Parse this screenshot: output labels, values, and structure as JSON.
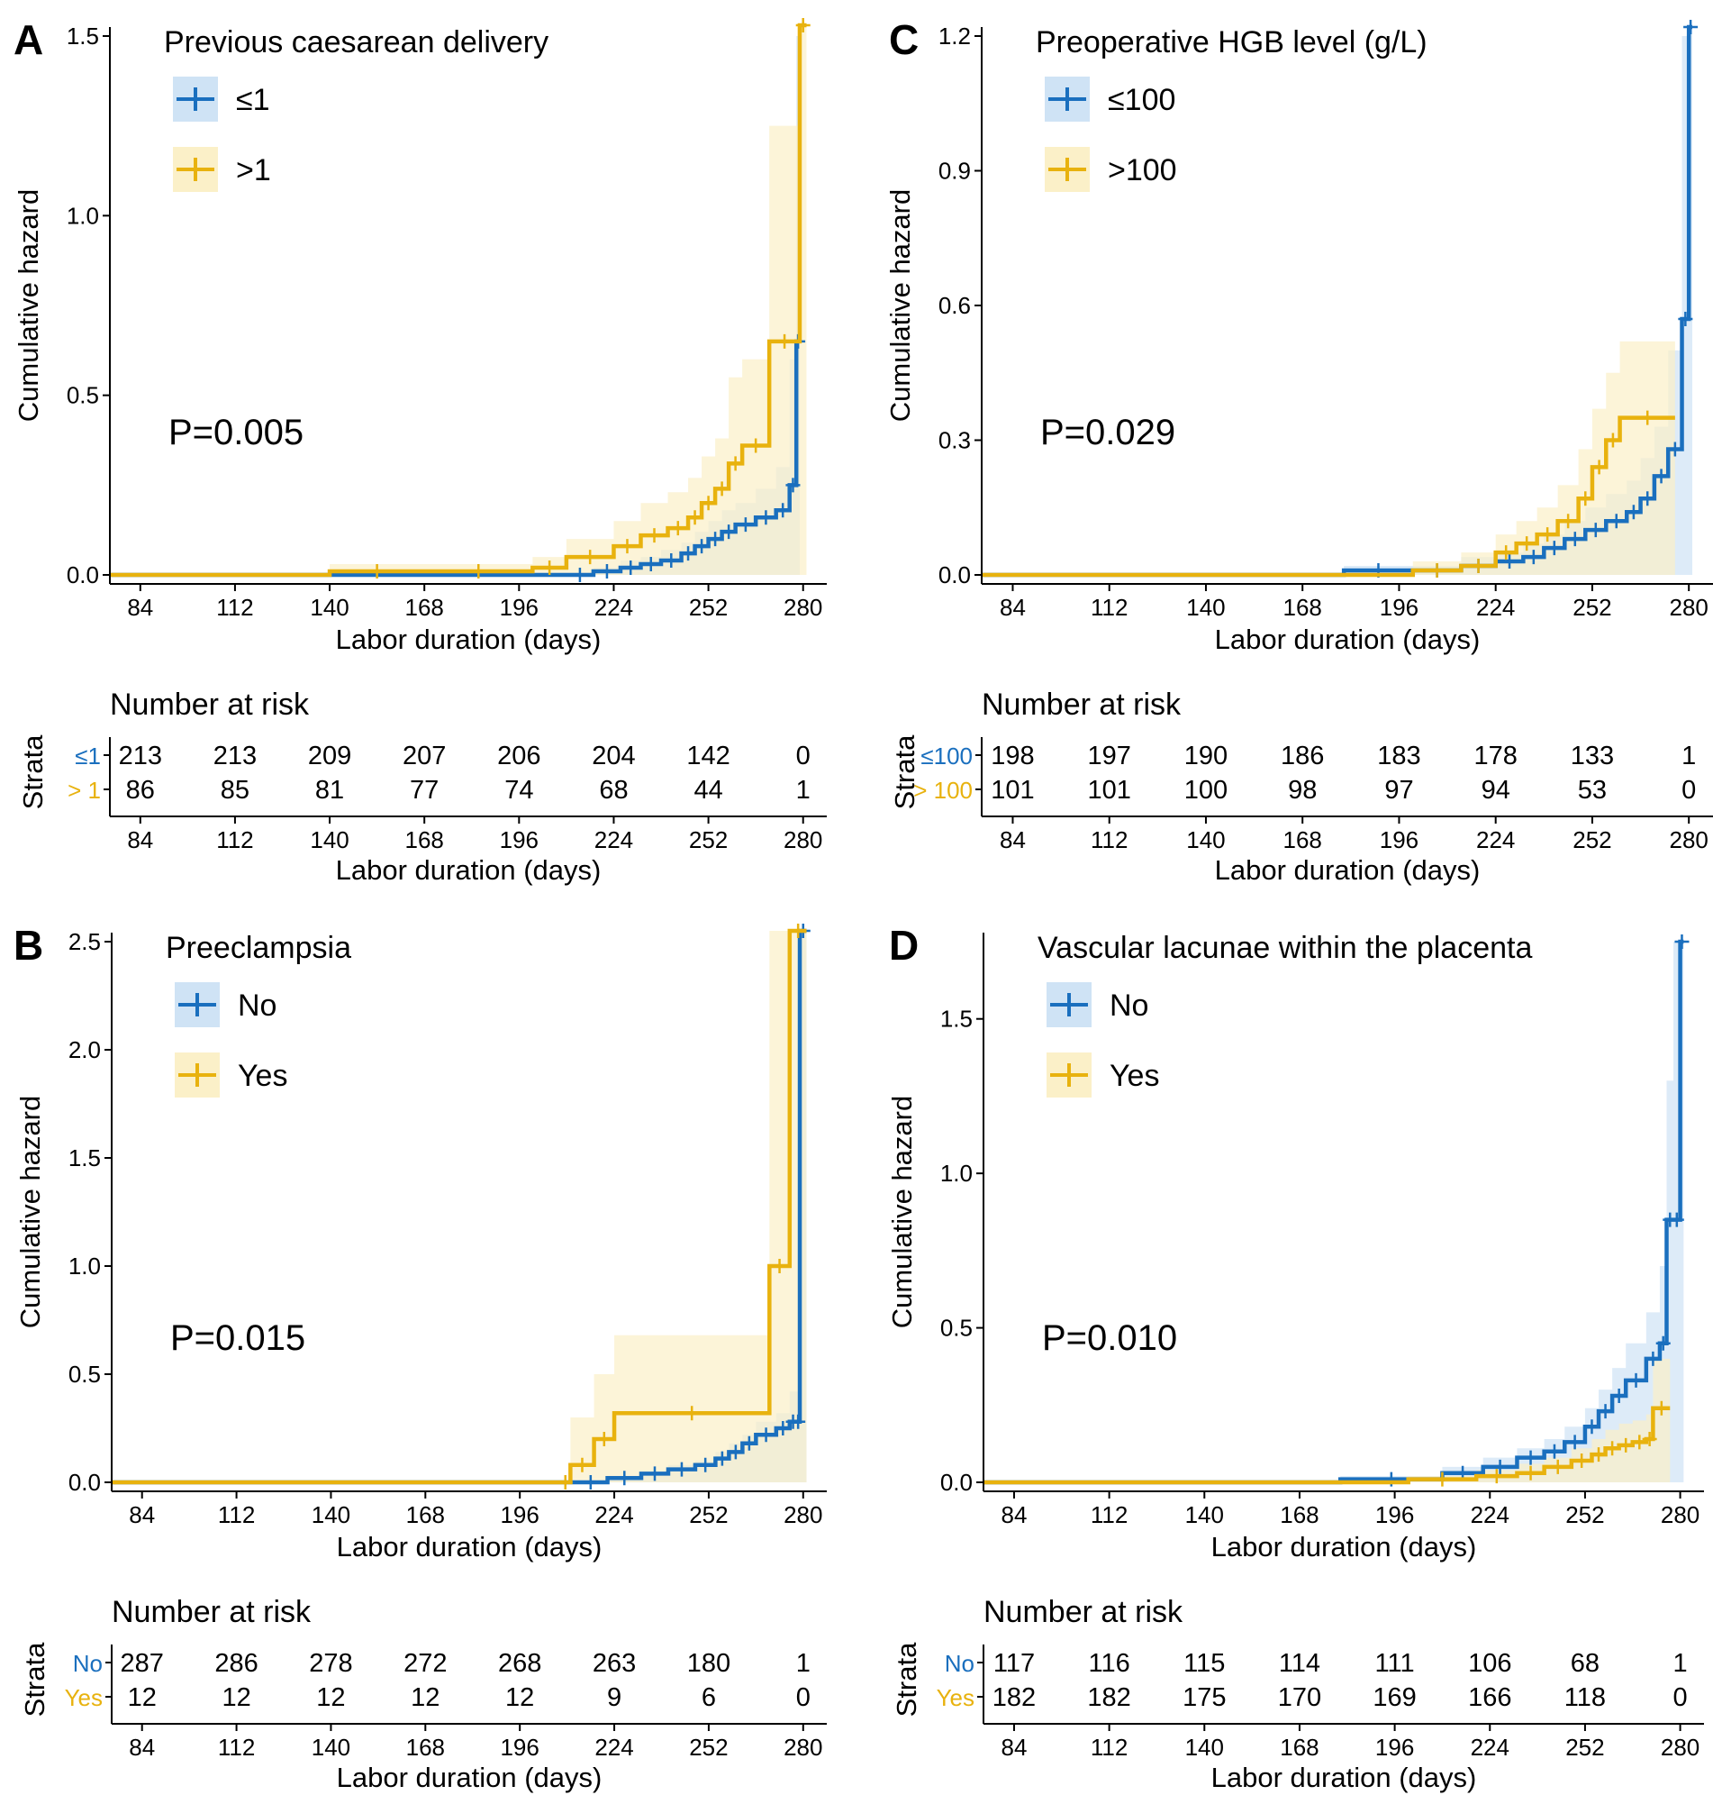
{
  "colors": {
    "group1": "#1a6fbe",
    "group2": "#e8b20e",
    "band1": "#cfe3f5",
    "band2": "#fbf0c8",
    "axis": "#000000"
  },
  "chart_data": [
    {
      "panel": "A",
      "type": "line",
      "title": "Previous caesarean delivery",
      "xlabel": "Labor duration (days)",
      "ylabel": "Cumulative hazard",
      "xlim": [
        75,
        287
      ],
      "ylim": [
        0,
        1.5
      ],
      "xticks": [
        "84",
        "112",
        "140",
        "168",
        "196",
        "224",
        "252",
        "280"
      ],
      "yticks": [
        "0.0",
        "0.5",
        "1.0",
        "1.5"
      ],
      "p_value": "P=0.005",
      "series": [
        {
          "name": "≤1",
          "x": [
            75,
            210,
            218,
            226,
            232,
            238,
            244,
            248,
            252,
            256,
            260,
            266,
            272,
            276,
            278,
            279
          ],
          "y": [
            0,
            0,
            0.01,
            0.02,
            0.03,
            0.04,
            0.06,
            0.08,
            0.1,
            0.12,
            0.14,
            0.16,
            0.18,
            0.25,
            0.65,
            0.65
          ],
          "band_upper": [
            0,
            0,
            0.02,
            0.04,
            0.05,
            0.07,
            0.09,
            0.12,
            0.15,
            0.18,
            0.2,
            0.24,
            0.3,
            0.6,
            1.5,
            1.5
          ]
        },
        {
          "name": ">1",
          "x": [
            75,
            140,
            168,
            200,
            210,
            224,
            232,
            240,
            246,
            250,
            254,
            258,
            262,
            270,
            279,
            281
          ],
          "y": [
            0,
            0.01,
            0.01,
            0.02,
            0.05,
            0.08,
            0.11,
            0.13,
            0.16,
            0.2,
            0.24,
            0.31,
            0.36,
            0.65,
            1.55,
            1.55
          ],
          "band_upper": [
            0,
            0.03,
            0.03,
            0.05,
            0.1,
            0.15,
            0.2,
            0.23,
            0.27,
            0.33,
            0.38,
            0.55,
            0.6,
            1.25,
            1.55,
            1.55
          ]
        }
      ],
      "risk_table": {
        "title": "Number at risk",
        "strata_label": "Strata",
        "rows": [
          {
            "label": "≤1",
            "values": [
              "213",
              "213",
              "209",
              "207",
              "206",
              "204",
              "142",
              "0"
            ]
          },
          {
            "label": "> 1",
            "values": [
              "86",
              "85",
              "81",
              "77",
              "74",
              "68",
              "44",
              "1"
            ]
          }
        ]
      }
    },
    {
      "panel": "C",
      "type": "line",
      "title": "Preoperative HGB level (g/L)",
      "xlabel": "Labor duration (days)",
      "ylabel": "Cumulative hazard",
      "xlim": [
        75,
        287
      ],
      "ylim": [
        0,
        1.2
      ],
      "xticks": [
        "84",
        "112",
        "140",
        "168",
        "196",
        "224",
        "252",
        "280"
      ],
      "yticks": [
        "0.0",
        "0.3",
        "0.6",
        "0.9",
        "1.2"
      ],
      "p_value": "P=0.029",
      "series": [
        {
          "name": "≤100",
          "x": [
            75,
            180,
            200,
            214,
            224,
            232,
            238,
            244,
            250,
            256,
            262,
            266,
            270,
            274,
            278,
            280,
            281
          ],
          "y": [
            0,
            0.01,
            0.01,
            0.02,
            0.03,
            0.04,
            0.06,
            0.08,
            0.1,
            0.12,
            0.14,
            0.17,
            0.22,
            0.28,
            0.57,
            1.22,
            1.22
          ],
          "band_upper": [
            0,
            0.02,
            0.02,
            0.04,
            0.05,
            0.07,
            0.09,
            0.12,
            0.15,
            0.18,
            0.21,
            0.26,
            0.33,
            0.5,
            1.2,
            1.22,
            1.22
          ]
        },
        {
          "name": ">100",
          "x": [
            75,
            200,
            214,
            224,
            230,
            236,
            242,
            248,
            252,
            256,
            260,
            276
          ],
          "y": [
            0,
            0.01,
            0.02,
            0.05,
            0.07,
            0.09,
            0.12,
            0.17,
            0.24,
            0.3,
            0.35,
            0.35
          ],
          "band_upper": [
            0,
            0.03,
            0.05,
            0.09,
            0.12,
            0.15,
            0.2,
            0.28,
            0.37,
            0.45,
            0.52,
            0.52
          ]
        }
      ],
      "risk_table": {
        "title": "Number at risk",
        "strata_label": "Strata",
        "rows": [
          {
            "label": "≤100",
            "values": [
              "198",
              "197",
              "190",
              "186",
              "183",
              "178",
              "133",
              "1"
            ]
          },
          {
            "label": "> 100",
            "values": [
              "101",
              "101",
              "100",
              "98",
              "97",
              "94",
              "53",
              "0"
            ]
          }
        ]
      }
    },
    {
      "panel": "B",
      "type": "line",
      "title": "Preeclampsia",
      "xlabel": "Labor duration (days)",
      "ylabel": "Cumulative hazard",
      "xlim": [
        75,
        287
      ],
      "ylim": [
        0,
        2.5
      ],
      "xticks": [
        "84",
        "112",
        "140",
        "168",
        "196",
        "224",
        "252",
        "280"
      ],
      "yticks": [
        "0.0",
        "0.5",
        "1.0",
        "1.5",
        "2.0",
        "2.5"
      ],
      "p_value": "P=0.015",
      "series": [
        {
          "name": "No",
          "x": [
            75,
            212,
            222,
            232,
            240,
            248,
            254,
            258,
            262,
            266,
            272,
            276,
            278,
            279,
            281
          ],
          "y": [
            0,
            0,
            0.02,
            0.04,
            0.06,
            0.08,
            0.11,
            0.14,
            0.18,
            0.22,
            0.25,
            0.28,
            0.28,
            2.55,
            2.55
          ],
          "band_upper": [
            0,
            0,
            0.03,
            0.05,
            0.08,
            0.1,
            0.14,
            0.18,
            0.22,
            0.28,
            0.32,
            0.42,
            0.42,
            2.55,
            2.55
          ]
        },
        {
          "name": "Yes",
          "x": [
            75,
            208,
            211,
            218,
            224,
            270,
            276,
            281
          ],
          "y": [
            0,
            0,
            0.08,
            0.2,
            0.32,
            1.0,
            2.55,
            2.55
          ],
          "band_upper": [
            0,
            0,
            0.3,
            0.5,
            0.68,
            2.55,
            2.55,
            2.55
          ]
        }
      ],
      "risk_table": {
        "title": "Number at risk",
        "strata_label": "Strata",
        "rows": [
          {
            "label": "No",
            "values": [
              "287",
              "286",
              "278",
              "272",
              "268",
              "263",
              "180",
              "1"
            ]
          },
          {
            "label": "Yes",
            "values": [
              "12",
              "12",
              "12",
              "12",
              "12",
              "9",
              "6",
              "0"
            ]
          }
        ]
      }
    },
    {
      "panel": "D",
      "type": "line",
      "title": "Vascular lacunae within the placenta",
      "xlabel": "Labor duration (days)",
      "ylabel": "Cumulative hazard",
      "xlim": [
        75,
        287
      ],
      "ylim": [
        0,
        1.75
      ],
      "xticks": [
        "84",
        "112",
        "140",
        "168",
        "196",
        "224",
        "252",
        "280"
      ],
      "yticks": [
        "0.0",
        "0.5",
        "1.0",
        "1.5"
      ],
      "p_value": "P=0.010",
      "series": [
        {
          "name": "No",
          "x": [
            75,
            180,
            210,
            222,
            232,
            240,
            246,
            252,
            256,
            260,
            264,
            270,
            274,
            276,
            278,
            280,
            281
          ],
          "y": [
            0,
            0.01,
            0.03,
            0.05,
            0.08,
            0.1,
            0.13,
            0.18,
            0.23,
            0.28,
            0.33,
            0.4,
            0.45,
            0.85,
            0.85,
            1.75,
            1.75
          ],
          "band_upper": [
            0,
            0.02,
            0.05,
            0.08,
            0.11,
            0.14,
            0.18,
            0.24,
            0.3,
            0.37,
            0.45,
            0.55,
            0.7,
            1.3,
            1.75,
            1.75,
            1.75
          ]
        },
        {
          "name": "Yes",
          "x": [
            75,
            200,
            220,
            232,
            240,
            248,
            254,
            258,
            262,
            266,
            270,
            272,
            277
          ],
          "y": [
            0,
            0.01,
            0.02,
            0.03,
            0.05,
            0.07,
            0.09,
            0.11,
            0.12,
            0.13,
            0.14,
            0.24,
            0.24
          ],
          "band_upper": [
            0,
            0.02,
            0.04,
            0.06,
            0.08,
            0.11,
            0.14,
            0.17,
            0.19,
            0.2,
            0.22,
            0.4,
            0.4
          ]
        }
      ],
      "risk_table": {
        "title": "Number at risk",
        "strata_label": "Strata",
        "rows": [
          {
            "label": "No",
            "values": [
              "117",
              "116",
              "115",
              "114",
              "111",
              "106",
              "68",
              "1"
            ]
          },
          {
            "label": "Yes",
            "values": [
              "182",
              "182",
              "175",
              "170",
              "169",
              "166",
              "118",
              "0"
            ]
          }
        ]
      }
    }
  ]
}
